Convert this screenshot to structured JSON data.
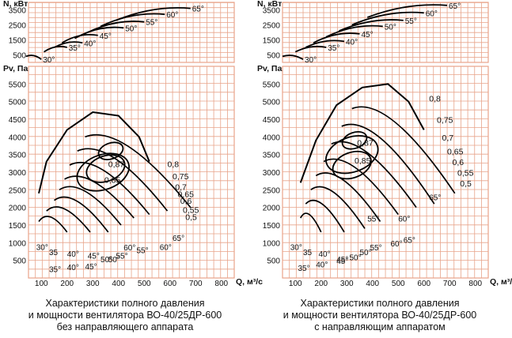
{
  "colors": {
    "grid": "#e8a48a",
    "curve": "#000000",
    "text": "#111111",
    "background": "#ffffff"
  },
  "chart_data": [
    {
      "type": "line",
      "subtype": "fan-performance-characteristic",
      "power_chart": {
        "ylabel": "N, кВт",
        "yticks": [
          "3500",
          "2500",
          "1500",
          "500"
        ],
        "ylim": [
          0,
          4000
        ],
        "curves": [
          {
            "angle": "30°",
            "points": [
              [
                40,
                400
              ],
              [
                100,
                200
              ]
            ]
          },
          {
            "angle": "35°",
            "points": [
              [
                110,
                700
              ],
              [
                200,
                1000
              ]
            ]
          },
          {
            "angle": "40°",
            "points": [
              [
                150,
                1000
              ],
              [
                260,
                1300
              ]
            ]
          },
          {
            "angle": "45°",
            "points": [
              [
                180,
                1300
              ],
              [
                320,
                1800
              ]
            ]
          },
          {
            "angle": "50°",
            "points": [
              [
                230,
                1600
              ],
              [
                420,
                2300
              ]
            ]
          },
          {
            "angle": "55°",
            "points": [
              [
                280,
                2000
              ],
              [
                500,
                2700
              ]
            ]
          },
          {
            "angle": "60°",
            "points": [
              [
                330,
                2400
              ],
              [
                580,
                3200
              ]
            ]
          },
          {
            "angle": "65°",
            "points": [
              [
                390,
                2800
              ],
              [
                680,
                3600
              ]
            ]
          }
        ]
      },
      "pressure_chart": {
        "ylabel": "Pv, Па",
        "xlabel": "Q, м³/с",
        "xticks": [
          "100",
          "200",
          "300",
          "400",
          "500",
          "600",
          "700",
          "800"
        ],
        "yticks": [
          "500",
          "1000",
          "1500",
          "2000",
          "2500",
          "3000",
          "3500",
          "4000",
          "4500",
          "5000",
          "5500"
        ],
        "xlim": [
          50,
          850
        ],
        "ylim": [
          0,
          6000
        ],
        "angle_labels": [
          "30°",
          "35",
          "40°",
          "45°",
          "50°",
          "55°",
          "60°",
          "65°",
          "35°",
          "40°",
          "45°",
          "50°",
          "55°",
          "60°"
        ],
        "efficiency_labels": [
          "0,87",
          "0,85",
          "0,8",
          "0,75",
          "0,7",
          "0,65",
          "0,6",
          "0,55",
          "0,5"
        ],
        "curves": [
          {
            "angle": "30°",
            "points": [
              [
                90,
                1600
              ],
              [
                200,
                1300
              ]
            ]
          },
          {
            "angle": "35°",
            "points": [
              [
                120,
                1900
              ],
              [
                290,
                1300
              ]
            ]
          },
          {
            "angle": "40°",
            "points": [
              [
                150,
                2200
              ],
              [
                360,
                1300
              ]
            ]
          },
          {
            "angle": "45°",
            "points": [
              [
                170,
                2500
              ],
              [
                410,
                1500
              ]
            ]
          },
          {
            "angle": "50°",
            "points": [
              [
                190,
                2800
              ],
              [
                460,
                1700
              ]
            ]
          },
          {
            "angle": "55°",
            "points": [
              [
                210,
                3200
              ],
              [
                520,
                1800
              ]
            ]
          },
          {
            "angle": "60°",
            "points": [
              [
                240,
                3600
              ],
              [
                590,
                1900
              ]
            ]
          },
          {
            "angle": "65°",
            "points": [
              [
                270,
                4000
              ],
              [
                680,
                2000
              ]
            ]
          }
        ],
        "efficiency_islands": [
          {
            "eta": "0,87",
            "center": [
              370,
              3600
            ]
          },
          {
            "eta": "0,85",
            "center": [
              350,
              3100
            ]
          },
          {
            "eta": "0,8",
            "center": [
              340,
              3000
            ]
          }
        ]
      },
      "caption": [
        "Характеристики полного давления",
        "и мощности вентилятора ВО-40/25ДР-600",
        "без направляющего аппарата"
      ]
    },
    {
      "type": "line",
      "subtype": "fan-performance-characteristic",
      "power_chart": {
        "ylabel": "N, кВт",
        "yticks": [
          "3500",
          "2500",
          "1500",
          "500"
        ],
        "ylim": [
          0,
          4000
        ],
        "curves": [
          {
            "angle": "30°",
            "points": [
              [
                50,
                400
              ],
              [
                130,
                200
              ]
            ]
          },
          {
            "angle": "35°",
            "points": [
              [
                100,
                700
              ],
              [
                220,
                1000
              ]
            ]
          },
          {
            "angle": "40°",
            "points": [
              [
                140,
                1000
              ],
              [
                290,
                1400
              ]
            ]
          },
          {
            "angle": "45°",
            "points": [
              [
                170,
                1300
              ],
              [
                350,
                1900
              ]
            ]
          },
          {
            "angle": "50°",
            "points": [
              [
                220,
                1700
              ],
              [
                440,
                2400
              ]
            ]
          },
          {
            "angle": "55°",
            "points": [
              [
                270,
                2100
              ],
              [
                520,
                2800
              ]
            ]
          },
          {
            "angle": "60°",
            "points": [
              [
                320,
                2500
              ],
              [
                600,
                3300
              ]
            ]
          },
          {
            "angle": "65°",
            "points": [
              [
                380,
                3000
              ],
              [
                690,
                3800
              ]
            ]
          }
        ]
      },
      "pressure_chart": {
        "ylabel": "Pv, Па",
        "xlabel": "Q, м³/с",
        "xticks": [
          "100",
          "200",
          "300",
          "400",
          "500",
          "600",
          "700",
          "800"
        ],
        "yticks": [
          "500",
          "1000",
          "1500",
          "2000",
          "2500",
          "3000",
          "3500",
          "4000",
          "4500",
          "5000",
          "5500"
        ],
        "xlim": [
          50,
          850
        ],
        "ylim": [
          0,
          6000
        ],
        "angle_labels": [
          "30°",
          "35",
          "40°",
          "45°",
          "50°",
          "55°",
          "60°",
          "65°",
          "35°",
          "40°",
          "45°",
          "50°",
          "55°",
          "60°",
          "65°"
        ],
        "efficiency_labels": [
          "0,87",
          "0,85",
          "0,8",
          "0,75",
          "0,7",
          "0,65",
          "0,6",
          "0,55",
          "0,5"
        ],
        "curves": [
          {
            "angle": "30°",
            "points": [
              [
                120,
                1700
              ],
              [
                200,
                1300
              ]
            ]
          },
          {
            "angle": "35°",
            "points": [
              [
                140,
                2100
              ],
              [
                290,
                1300
              ]
            ]
          },
          {
            "angle": "40°",
            "points": [
              [
                160,
                2500
              ],
              [
                370,
                1400
              ]
            ]
          },
          {
            "angle": "45°",
            "points": [
              [
                180,
                2900
              ],
              [
                430,
                1600
              ]
            ]
          },
          {
            "angle": "50°",
            "points": [
              [
                210,
                3300
              ],
              [
                500,
                1800
              ]
            ]
          },
          {
            "angle": "55°",
            "points": [
              [
                240,
                3800
              ],
              [
                570,
                2000
              ]
            ]
          },
          {
            "angle": "60°",
            "points": [
              [
                280,
                4300
              ],
              [
                640,
                2100
              ]
            ]
          },
          {
            "angle": "65°",
            "points": [
              [
                320,
                4800
              ],
              [
                720,
                2400
              ]
            ]
          }
        ],
        "efficiency_islands": [
          {
            "eta": "0,87",
            "center": [
              330,
              3900
            ]
          },
          {
            "eta": "0,85",
            "center": [
              320,
              3200
            ]
          },
          {
            "eta": "0,8",
            "center": [
              320,
              3500
            ]
          }
        ]
      },
      "caption": [
        "Характеристики полного давления",
        "и мощности вентилятора ВО-40/25ДР-600",
        "с направляющим аппаратом"
      ]
    }
  ]
}
